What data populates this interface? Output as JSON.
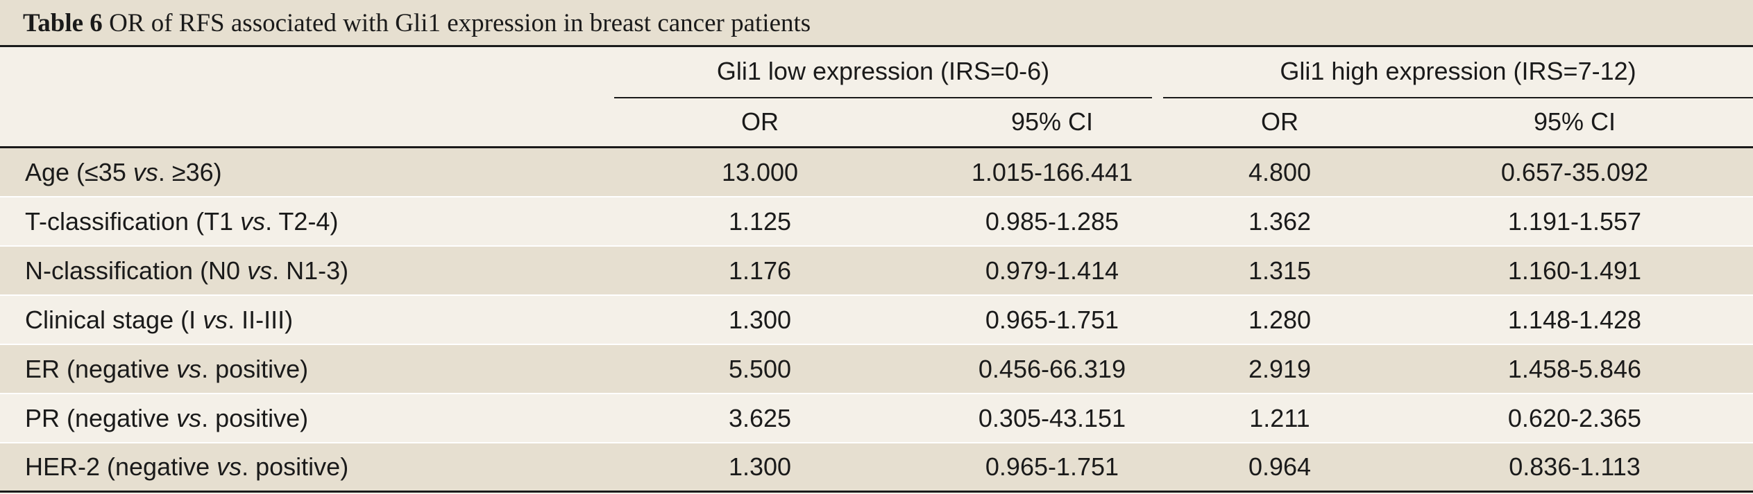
{
  "table": {
    "title_label": "Table 6",
    "title_text": "OR of RFS associated with Gli1 expression in breast cancer patients",
    "groups": [
      {
        "label": "Gli1 low expression (IRS=0-6)"
      },
      {
        "label": "Gli1 high expression (IRS=7-12)"
      }
    ],
    "subheaders": [
      "OR",
      "95% CI",
      "OR",
      "95% CI"
    ],
    "rows": [
      {
        "pre": "Age (≤35 ",
        "vs": "vs",
        "post": ". ≥36)",
        "or_low": "13.000",
        "ci_low": "1.015-166.441",
        "or_high": "4.800",
        "ci_high": "0.657-35.092"
      },
      {
        "pre": "T-classification (T1 ",
        "vs": "vs",
        "post": ". T2-4)",
        "or_low": "1.125",
        "ci_low": "0.985-1.285",
        "or_high": "1.362",
        "ci_high": "1.191-1.557"
      },
      {
        "pre": "N-classification (N0 ",
        "vs": "vs",
        "post": ". N1-3)",
        "or_low": "1.176",
        "ci_low": "0.979-1.414",
        "or_high": "1.315",
        "ci_high": "1.160-1.491"
      },
      {
        "pre": "Clinical stage (I ",
        "vs": "vs",
        "post": ". II-III)",
        "or_low": "1.300",
        "ci_low": "0.965-1.751",
        "or_high": "1.280",
        "ci_high": "1.148-1.428"
      },
      {
        "pre": "ER (negative ",
        "vs": "vs",
        "post": ". positive)",
        "or_low": "5.500",
        "ci_low": "0.456-66.319",
        "or_high": "2.919",
        "ci_high": "1.458-5.846"
      },
      {
        "pre": "PR (negative ",
        "vs": "vs",
        "post": ". positive)",
        "or_low": "3.625",
        "ci_low": "0.305-43.151",
        "or_high": "1.211",
        "ci_high": "0.620-2.365"
      },
      {
        "pre": "HER-2 (negative ",
        "vs": "vs",
        "post": ". positive)",
        "or_low": "1.300",
        "ci_low": "0.965-1.751",
        "or_high": "0.964",
        "ci_high": "0.836-1.113"
      }
    ]
  }
}
